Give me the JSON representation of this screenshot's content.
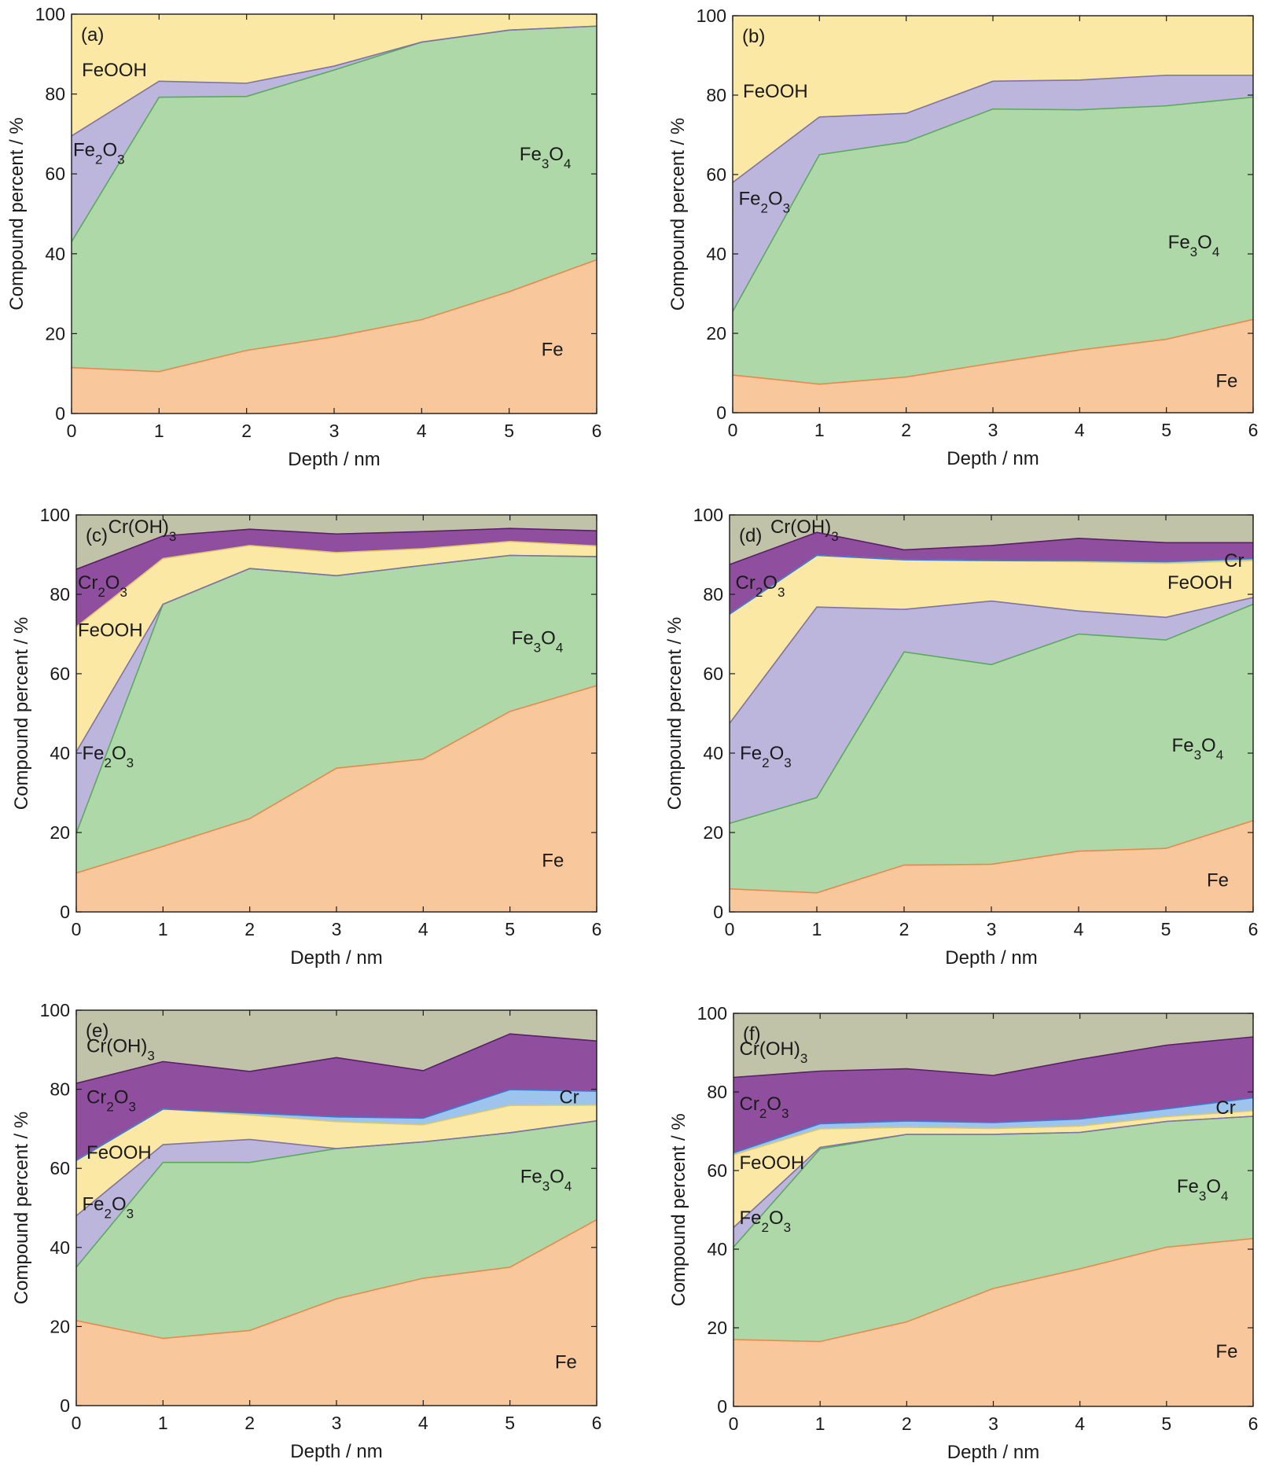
{
  "colors": {
    "Fe": "#F8C89C",
    "Fe3O4": "#AED8A8",
    "Fe2O3": "#BCB6DC",
    "FeOOH": "#FAE8A4",
    "Cr": "#9CC4EC",
    "Cr2O3": "#8F4F9E",
    "CrOH3": "#C0C3A8"
  },
  "edge_colors": {
    "Fe": "#E8884C",
    "Fe3O4": "#5AAA5A",
    "Fe2O3": "#7E72A8",
    "FeOOH": "#E0C86A",
    "Cr": "#3A7AD0",
    "Cr2O3": "#5A1E6A",
    "CrOH3": "#8A8C78"
  },
  "chart_data": [
    {
      "panel": "(a)",
      "type": "area",
      "stacked": true,
      "x": [
        0,
        1,
        2,
        3,
        4,
        5,
        6
      ],
      "xlabel": "Depth / nm",
      "ylabel": "Compound percent / %",
      "xlim": [
        0,
        6
      ],
      "ylim": [
        0,
        100
      ],
      "xticks": [
        "0",
        "1",
        "2",
        "3",
        "4",
        "5",
        "6"
      ],
      "yticks": [
        "0",
        "20",
        "40",
        "60",
        "80",
        "100"
      ],
      "series": [
        {
          "name": "Fe",
          "values": [
            11.5,
            10.5,
            15.8,
            19.2,
            23.5,
            30.5,
            38.5
          ]
        },
        {
          "name": "Fe₃O₄",
          "values": [
            31.5,
            68.7,
            63.6,
            66.8,
            69.5,
            65.5,
            58.5
          ]
        },
        {
          "name": "Fe₂O₃",
          "values": [
            26.5,
            4.0,
            3.3,
            1.0,
            0,
            0,
            0
          ]
        },
        {
          "name": "FeOOH",
          "values": [
            30.5,
            16.8,
            17.3,
            13.0,
            7.0,
            4.0,
            3.0
          ]
        }
      ],
      "labels": [
        {
          "text": "FeOOH",
          "x": 0.1,
          "y": 86
        },
        {
          "text": "Fe₂O₃",
          "x": 0.0,
          "y": 66
        },
        {
          "text": "Fe₃O₄",
          "x": 5.1,
          "y": 65
        },
        {
          "text": "Fe",
          "x": 5.35,
          "y": 16
        }
      ]
    },
    {
      "panel": "(b)",
      "type": "area",
      "stacked": true,
      "x": [
        0,
        1,
        2,
        3,
        4,
        5,
        6
      ],
      "xlabel": "Depth / nm",
      "ylabel": "Compound percent / %",
      "xlim": [
        0,
        6
      ],
      "ylim": [
        0,
        100
      ],
      "xticks": [
        "0",
        "1",
        "2",
        "3",
        "4",
        "5",
        "6"
      ],
      "yticks": [
        "0",
        "20",
        "40",
        "60",
        "80",
        "100"
      ],
      "series": [
        {
          "name": "Fe",
          "values": [
            9.5,
            7.2,
            9.0,
            12.5,
            15.8,
            18.5,
            23.5
          ]
        },
        {
          "name": "Fe₃O₄",
          "values": [
            16.0,
            57.8,
            59.2,
            64.0,
            60.5,
            58.8,
            56.0
          ]
        },
        {
          "name": "Fe₂O₃",
          "values": [
            32.5,
            9.5,
            7.2,
            7.0,
            7.5,
            7.7,
            5.5
          ]
        },
        {
          "name": "FeOOH",
          "values": [
            42.0,
            25.5,
            24.6,
            16.5,
            16.2,
            15.0,
            15.0
          ]
        }
      ],
      "labels": [
        {
          "text": "FeOOH",
          "x": 0.1,
          "y": 81
        },
        {
          "text": "Fe₂O₃",
          "x": 0.05,
          "y": 54
        },
        {
          "text": "Fe₃O₄",
          "x": 5.0,
          "y": 43
        },
        {
          "text": "Fe",
          "x": 5.55,
          "y": 8
        }
      ]
    },
    {
      "panel": "(c)",
      "type": "area",
      "stacked": true,
      "x": [
        0,
        1,
        2,
        3,
        4,
        5,
        6
      ],
      "xlabel": "Depth / nm",
      "ylabel": "Compound percent / %",
      "xlim": [
        0,
        6
      ],
      "ylim": [
        0,
        100
      ],
      "xticks": [
        "0",
        "1",
        "2",
        "3",
        "4",
        "5",
        "6"
      ],
      "yticks": [
        "0",
        "20",
        "40",
        "60",
        "80",
        "100"
      ],
      "series": [
        {
          "name": "Fe",
          "values": [
            9.8,
            16.5,
            23.5,
            36.2,
            38.5,
            50.5,
            57.0
          ]
        },
        {
          "name": "Fe₃O₄",
          "values": [
            10.0,
            61.0,
            63.0,
            48.5,
            48.8,
            39.3,
            32.5
          ]
        },
        {
          "name": "Fe₂O₃",
          "values": [
            20.5,
            0,
            0,
            0,
            0,
            0,
            0
          ]
        },
        {
          "name": "FeOOH",
          "values": [
            31.5,
            11.5,
            5.8,
            5.8,
            4.2,
            3.5,
            2.7
          ]
        },
        {
          "name": "Cr₂O₃",
          "values": [
            14.5,
            5.7,
            4.1,
            4.7,
            4.3,
            3.3,
            3.8
          ]
        },
        {
          "name": "Cr(OH)₃",
          "values": [
            13.7,
            5.3,
            3.6,
            4.8,
            4.2,
            3.4,
            4.0
          ]
        }
      ],
      "labels": [
        {
          "text": "Cr(OH)₃",
          "x": 0.35,
          "y": 97
        },
        {
          "text": "Cr₂O₃",
          "x": 0.0,
          "y": 83
        },
        {
          "text": "FeOOH",
          "x": 0.0,
          "y": 71
        },
        {
          "text": "Fe₂O₃",
          "x": 0.05,
          "y": 40
        },
        {
          "text": "Fe₃O₄",
          "x": 5.0,
          "y": 69
        },
        {
          "text": "Fe",
          "x": 5.35,
          "y": 13
        }
      ]
    },
    {
      "panel": "(d)",
      "type": "area",
      "stacked": true,
      "x": [
        0,
        1,
        2,
        3,
        4,
        5,
        6
      ],
      "xlabel": "Depth / nm",
      "ylabel": "Compound percent / %",
      "xlim": [
        0,
        6
      ],
      "ylim": [
        0,
        100
      ],
      "xticks": [
        "0",
        "1",
        "2",
        "3",
        "4",
        "5",
        "6"
      ],
      "yticks": [
        "0",
        "20",
        "40",
        "60",
        "80",
        "100"
      ],
      "series": [
        {
          "name": "Fe",
          "values": [
            5.8,
            4.8,
            11.8,
            12.0,
            15.3,
            16.0,
            23.0
          ]
        },
        {
          "name": "Fe₃O₄",
          "values": [
            16.5,
            24.0,
            53.7,
            50.3,
            54.7,
            52.5,
            54.5
          ]
        },
        {
          "name": "Fe₂O₃",
          "values": [
            25.2,
            48.0,
            10.7,
            16.0,
            5.8,
            5.7,
            1.7
          ]
        },
        {
          "name": "FeOOH",
          "values": [
            27.5,
            13.0,
            12.5,
            10.2,
            12.4,
            13.6,
            9.3
          ]
        },
        {
          "name": "Cr",
          "values": [
            0,
            0,
            0,
            0,
            0.3,
            0.4,
            0.5
          ]
        },
        {
          "name": "Cr₂O₃",
          "values": [
            12.5,
            5.8,
            2.5,
            3.8,
            5.6,
            4.8,
            4.0
          ]
        },
        {
          "name": "Cr(OH)₃",
          "values": [
            12.5,
            4.4,
            8.8,
            7.7,
            5.9,
            7.0,
            7.0
          ]
        }
      ],
      "labels": [
        {
          "text": "Cr(OH)₃",
          "x": 0.45,
          "y": 97
        },
        {
          "text": "Cr₂O₃",
          "x": 0.05,
          "y": 83
        },
        {
          "text": "Cr",
          "x": 5.65,
          "y": 88.5
        },
        {
          "text": "FeOOH",
          "x": 5.0,
          "y": 83
        },
        {
          "text": "Fe₂O₃",
          "x": 0.1,
          "y": 40
        },
        {
          "text": "Fe₃O₄",
          "x": 5.05,
          "y": 42
        },
        {
          "text": "Fe",
          "x": 5.45,
          "y": 8
        }
      ]
    },
    {
      "panel": "(e)",
      "type": "area",
      "stacked": true,
      "x": [
        0,
        1,
        2,
        3,
        4,
        5,
        6
      ],
      "xlabel": "Depth / nm",
      "ylabel": "Compound percent / %",
      "xlim": [
        0,
        6
      ],
      "ylim": [
        0,
        100
      ],
      "xticks": [
        "0",
        "1",
        "2",
        "3",
        "4",
        "5",
        "6"
      ],
      "yticks": [
        "0",
        "20",
        "40",
        "60",
        "80",
        "100"
      ],
      "series": [
        {
          "name": "Fe",
          "values": [
            21.5,
            17.0,
            19.0,
            27.0,
            32.2,
            35.0,
            47.0
          ]
        },
        {
          "name": "Fe₃O₄",
          "values": [
            13.5,
            44.5,
            42.5,
            38.0,
            34.5,
            34.0,
            25.0
          ]
        },
        {
          "name": "Fe₂O₃",
          "values": [
            13.0,
            4.5,
            5.8,
            0,
            0,
            0,
            0
          ]
        },
        {
          "name": "FeOOH",
          "values": [
            14.0,
            9.0,
            6.2,
            6.8,
            4.3,
            6.9,
            4.0
          ]
        },
        {
          "name": "Cr",
          "values": [
            0,
            0,
            0.5,
            1.2,
            1.7,
            4.0,
            3.5
          ]
        },
        {
          "name": "Cr₂O₃",
          "values": [
            19.5,
            12.0,
            10.5,
            15.0,
            12.0,
            14.1,
            12.7
          ]
        },
        {
          "name": "Cr(OH)₃",
          "values": [
            18.5,
            13.0,
            15.5,
            12.0,
            15.3,
            10.0,
            7.8
          ]
        }
      ],
      "labels": [
        {
          "text": "Cr(OH)₃",
          "x": 0.1,
          "y": 91
        },
        {
          "text": "Cr₂O₃",
          "x": 0.1,
          "y": 78
        },
        {
          "text": "Cr",
          "x": 5.55,
          "y": 78
        },
        {
          "text": "FeOOH",
          "x": 0.1,
          "y": 64
        },
        {
          "text": "Fe₂O₃",
          "x": 0.05,
          "y": 51
        },
        {
          "text": "Fe₃O₄",
          "x": 5.1,
          "y": 58
        },
        {
          "text": "Fe",
          "x": 5.5,
          "y": 11
        }
      ]
    },
    {
      "panel": "(f)",
      "type": "area",
      "stacked": true,
      "x": [
        0,
        1,
        2,
        3,
        4,
        5,
        6
      ],
      "xlabel": "Depth / nm",
      "ylabel": "Compound percent / %",
      "xlim": [
        0,
        6
      ],
      "ylim": [
        0,
        100
      ],
      "xticks": [
        "0",
        "1",
        "2",
        "3",
        "4",
        "5",
        "6"
      ],
      "yticks": [
        "0",
        "20",
        "40",
        "60",
        "80",
        "100"
      ],
      "series": [
        {
          "name": "Fe",
          "values": [
            17.0,
            16.5,
            21.5,
            30.0,
            35.0,
            40.5,
            42.7
          ]
        },
        {
          "name": "Fe₃O₄",
          "values": [
            23.5,
            49.0,
            47.7,
            39.2,
            34.7,
            32.0,
            31.1
          ]
        },
        {
          "name": "Fe₂O₃",
          "values": [
            5.0,
            0.4,
            0,
            0,
            0,
            0,
            0
          ]
        },
        {
          "name": "FeOOH",
          "values": [
            18.5,
            4.7,
            1.8,
            1.5,
            1.6,
            1.2,
            1.4
          ]
        },
        {
          "name": "Cr",
          "values": [
            0.5,
            1.3,
            1.6,
            1.5,
            1.8,
            2.0,
            3.3
          ]
        },
        {
          "name": "Cr₂O₃",
          "values": [
            19.2,
            13.4,
            13.3,
            12.0,
            15.2,
            16.2,
            15.5
          ]
        },
        {
          "name": "Cr(OH)₃",
          "values": [
            16.3,
            14.7,
            14.1,
            15.8,
            11.7,
            8.1,
            6.0
          ]
        }
      ],
      "labels": [
        {
          "text": "Cr(OH)₃",
          "x": 0.05,
          "y": 91
        },
        {
          "text": "Cr₂O₃",
          "x": 0.05,
          "y": 77
        },
        {
          "text": "Cr",
          "x": 5.55,
          "y": 76
        },
        {
          "text": "FeOOH",
          "x": 0.05,
          "y": 62
        },
        {
          "text": "Fe₂O₃",
          "x": 0.05,
          "y": 48
        },
        {
          "text": "Fe₃O₄",
          "x": 5.1,
          "y": 56
        },
        {
          "text": "Fe",
          "x": 5.55,
          "y": 14
        }
      ]
    }
  ]
}
